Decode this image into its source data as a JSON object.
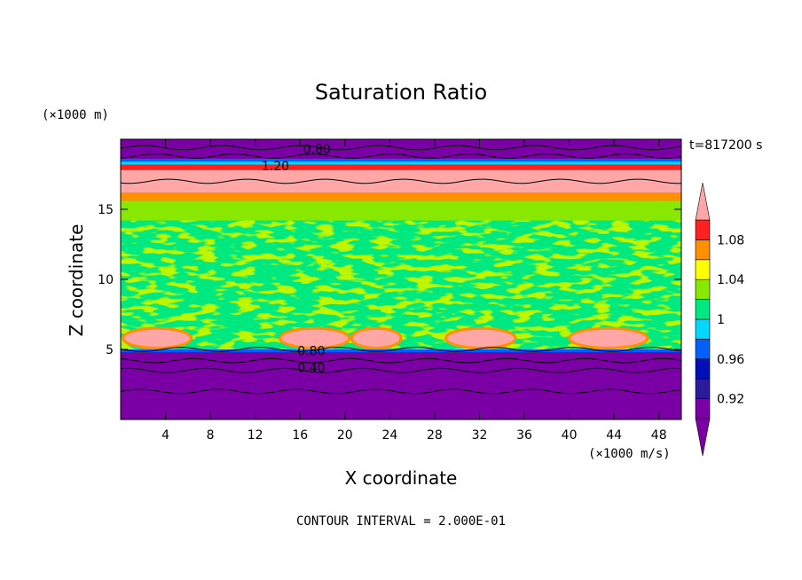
{
  "chart_data": {
    "type": "heatmap",
    "title": "Saturation Ratio",
    "xlabel": "X coordinate",
    "ylabel": "Z coordinate",
    "x_unit": "(×1000 m/s)",
    "y_unit": "(×1000 m)",
    "time_label": "t=817200 s",
    "footer": "CONTOUR INTERVAL = 2.000E-01",
    "xlim": [
      0,
      50
    ],
    "ylim": [
      0,
      20
    ],
    "x_ticks": [
      4,
      8,
      12,
      16,
      20,
      24,
      28,
      32,
      36,
      40,
      44,
      48
    ],
    "y_ticks": [
      5,
      10,
      15
    ],
    "colorbar": {
      "levels": [
        0.9,
        0.92,
        0.94,
        0.96,
        0.98,
        1.0,
        1.02,
        1.04,
        1.06,
        1.08,
        1.1
      ],
      "tick_labels": [
        "0.92",
        "0.96",
        "1",
        "1.04",
        "1.08"
      ],
      "colors": [
        "#7a00a6",
        "#2c1a9c",
        "#0010b8",
        "#0060ff",
        "#00d8ff",
        "#00e880",
        "#88e800",
        "#ffff00",
        "#ff9000",
        "#ff2020",
        "#ffa6a6"
      ],
      "extend": "both"
    },
    "contour_labels": [
      "0.80",
      "1.20",
      "0.80",
      "0.40"
    ]
  }
}
